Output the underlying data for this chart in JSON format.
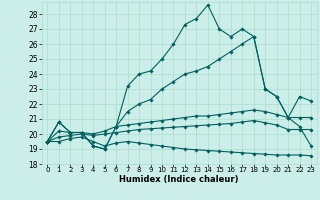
{
  "xlabel": "Humidex (Indice chaleur)",
  "xlim": [
    -0.5,
    23.5
  ],
  "ylim": [
    18,
    28.8
  ],
  "xticks": [
    0,
    1,
    2,
    3,
    4,
    5,
    6,
    7,
    8,
    9,
    10,
    11,
    12,
    13,
    14,
    15,
    16,
    17,
    18,
    19,
    20,
    21,
    22,
    23
  ],
  "yticks": [
    18,
    19,
    20,
    21,
    22,
    23,
    24,
    25,
    26,
    27,
    28
  ],
  "bg_color": "#cceee8",
  "grid_color": "#aaddcc",
  "line_color": "#006060",
  "series": {
    "main": [
      19.5,
      20.8,
      20.1,
      20.1,
      19.2,
      19.0,
      20.5,
      23.2,
      24.0,
      24.2,
      25.0,
      26.0,
      27.3,
      27.7,
      28.6,
      27.0,
      26.5,
      27.0,
      26.5,
      23.0,
      22.5,
      21.1,
      20.5,
      19.2
    ],
    "upper": [
      19.5,
      20.8,
      20.1,
      20.1,
      19.2,
      19.0,
      20.5,
      21.5,
      22.0,
      22.3,
      23.0,
      23.5,
      24.0,
      24.2,
      24.5,
      25.0,
      25.5,
      26.0,
      26.5,
      23.0,
      22.5,
      21.1,
      22.5,
      22.2
    ],
    "trend1": [
      19.5,
      20.2,
      20.1,
      20.1,
      20.0,
      20.2,
      20.5,
      20.6,
      20.7,
      20.8,
      20.9,
      21.0,
      21.1,
      21.2,
      21.2,
      21.3,
      21.4,
      21.5,
      21.6,
      21.5,
      21.3,
      21.1,
      21.1,
      21.1
    ],
    "trend2": [
      19.5,
      19.8,
      19.9,
      20.0,
      19.9,
      20.0,
      20.1,
      20.2,
      20.3,
      20.35,
      20.4,
      20.45,
      20.5,
      20.55,
      20.6,
      20.65,
      20.7,
      20.8,
      20.9,
      20.75,
      20.6,
      20.3,
      20.3,
      20.3
    ],
    "lower": [
      19.5,
      19.5,
      19.7,
      19.8,
      19.5,
      19.2,
      19.4,
      19.5,
      19.4,
      19.3,
      19.2,
      19.1,
      19.0,
      18.95,
      18.9,
      18.85,
      18.8,
      18.75,
      18.7,
      18.65,
      18.6,
      18.6,
      18.6,
      18.55
    ]
  }
}
